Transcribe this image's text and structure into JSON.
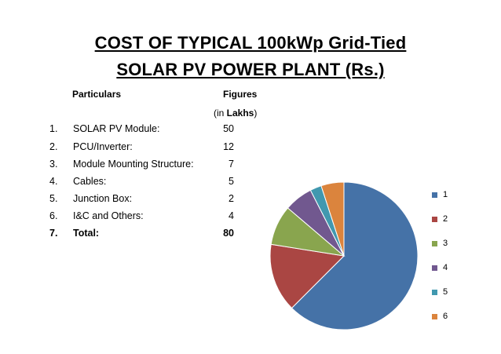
{
  "title": {
    "line1": "COST OF TYPICAL 100kWp Grid-Tied",
    "line2": "SOLAR PV POWER PLANT (Rs.)"
  },
  "table": {
    "header_particulars": "Particulars",
    "header_figures": "Figures",
    "header_unit": "(in Lakhs)",
    "rows": [
      {
        "num": "1.",
        "label": "SOLAR PV Module:",
        "value": "50"
      },
      {
        "num": "2.",
        "label": "PCU/Inverter:",
        "value": "12"
      },
      {
        "num": "3.",
        "label": "Module Mounting Structure:",
        "value": "7"
      },
      {
        "num": "4.",
        "label": "Cables:",
        "value": "5"
      },
      {
        "num": "5.",
        "label": "Junction Box:",
        "value": "2"
      },
      {
        "num": "6.",
        "label": "I&C and Others:",
        "value": "4"
      },
      {
        "num": "7.",
        "label": "Total:",
        "value": "80"
      }
    ]
  },
  "chart_data": {
    "type": "pie",
    "categories": [
      "1",
      "2",
      "3",
      "4",
      "5",
      "6"
    ],
    "values": [
      50,
      12,
      7,
      5,
      2,
      4
    ],
    "colors": [
      "#4572A7",
      "#AA4643",
      "#89A54E",
      "#71588F",
      "#4198AF",
      "#DB843D"
    ],
    "legend_position": "right",
    "start": "top, clockwise"
  }
}
